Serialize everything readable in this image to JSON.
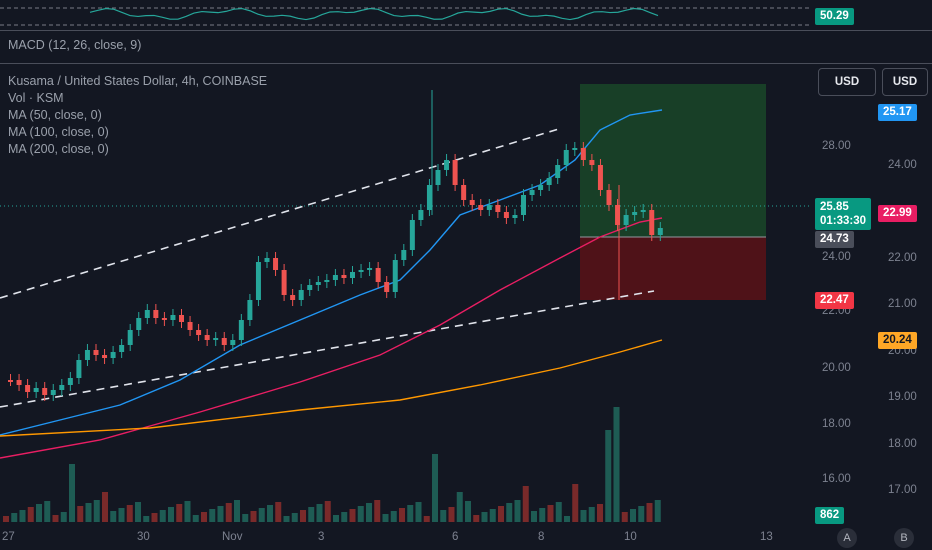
{
  "indicators": {
    "rsi_value": "50.29",
    "macd_label": "MACD (12, 26, close, 9)"
  },
  "legend": {
    "title": "Kusama / United States Dollar, 4h, COINBASE",
    "volume": "Vol · KSM",
    "ma50": "MA (50, close, 0)",
    "ma100": "MA (100, close, 0)",
    "ma200": "MA (200, close, 0)"
  },
  "buttons": {
    "currency_left": "USD",
    "currency_right": "USD"
  },
  "price_scale": {
    "left_ticks": [
      "28.00",
      "24.00",
      "22.00",
      "21.00",
      "20.00",
      "19.00",
      "18.00",
      "16.00"
    ],
    "right_ticks": [
      "24.00",
      "22.00",
      "21.00",
      "20.00",
      "19.00",
      "18.00",
      "17.00"
    ]
  },
  "tags": {
    "ma50": "25.17",
    "last_price": "25.85",
    "countdown": "01:33:30",
    "right_red": "22.99",
    "stop_level": "24.73",
    "ma100": "22.47",
    "ma200": "20.24",
    "volume": "862"
  },
  "time_axis": [
    "27",
    "30",
    "Nov",
    "3",
    "6",
    "8",
    "10",
    "13"
  ],
  "badges": {
    "a": "A",
    "b": "B"
  },
  "colors": {
    "up": "#26a69a",
    "down": "#ef5350",
    "ma50": "#2196f3",
    "ma100": "#e91e63",
    "ma200": "#ff9800"
  }
}
